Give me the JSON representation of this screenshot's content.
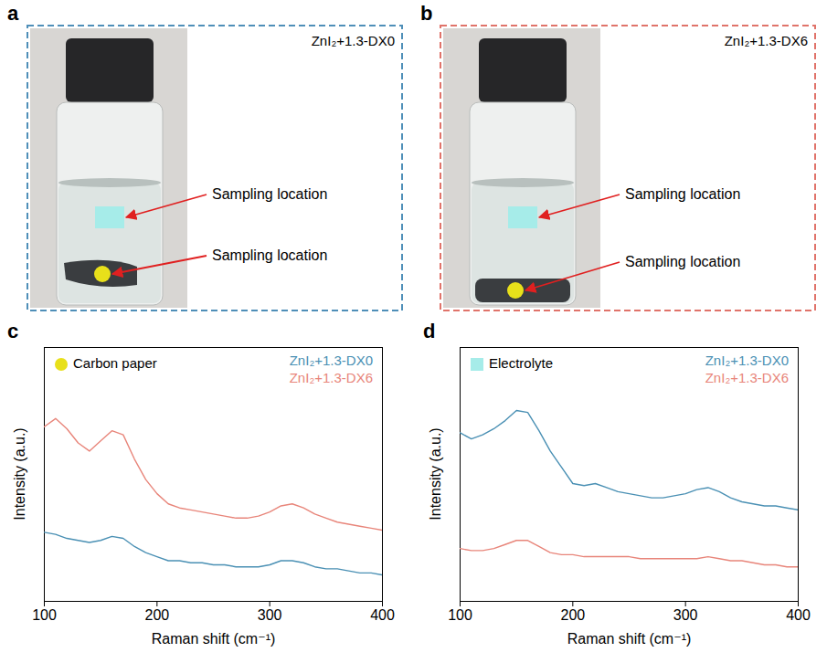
{
  "chart_data": [
    {
      "letter": "c",
      "type": "line",
      "x_label": "Raman shift (cm⁻¹)",
      "y_label": "Intensity (a.u.)",
      "x": [
        100,
        110,
        120,
        130,
        140,
        150,
        160,
        170,
        180,
        190,
        200,
        210,
        220,
        230,
        240,
        250,
        260,
        270,
        280,
        290,
        300,
        310,
        320,
        330,
        340,
        350,
        360,
        370,
        380,
        390,
        400
      ],
      "xlim": [
        100,
        400
      ],
      "xticks": [
        100,
        200,
        300,
        400
      ],
      "ylim": [
        0,
        125
      ],
      "yticks": [],
      "tick_labels": "x",
      "legend": "top-right",
      "annotation": {
        "text": "Carbon paper",
        "marker": "circle",
        "color": "#e8e01a"
      },
      "series": [
        {
          "name": "ZnI₂+1.3-DX0",
          "color": "#4a90b4",
          "values": [
            34,
            33,
            31,
            30,
            29,
            30,
            32,
            31,
            27,
            24,
            22,
            20,
            20,
            19,
            19,
            18,
            18,
            17,
            17,
            17,
            18,
            20,
            20,
            19,
            17,
            16,
            16,
            15,
            14,
            14,
            13
          ]
        },
        {
          "name": "ZnI₂+1.3-DX6",
          "color": "#e8857a",
          "values": [
            86,
            90,
            85,
            78,
            74,
            79,
            84,
            82,
            70,
            60,
            53,
            48,
            46,
            45,
            44,
            43,
            42,
            41,
            41,
            42,
            44,
            47,
            48,
            46,
            43,
            41,
            39,
            38,
            37,
            36,
            35
          ]
        }
      ]
    },
    {
      "letter": "d",
      "type": "line",
      "x_label": "Raman shift (cm⁻¹)",
      "y_label": "Intensity (a.u.)",
      "x": [
        100,
        110,
        120,
        130,
        140,
        150,
        160,
        170,
        180,
        190,
        200,
        210,
        220,
        230,
        240,
        250,
        260,
        270,
        280,
        290,
        300,
        310,
        320,
        330,
        340,
        350,
        360,
        370,
        380,
        390,
        400
      ],
      "xlim": [
        100,
        400
      ],
      "xticks": [
        100,
        200,
        300,
        400
      ],
      "ylim": [
        0,
        125
      ],
      "yticks": [],
      "tick_labels": "x",
      "legend": "top-right",
      "annotation": {
        "text": "Electrolyte",
        "marker": "square",
        "color": "#a6ece9"
      },
      "series": [
        {
          "name": "ZnI₂+1.3-DX0",
          "color": "#4a90b4",
          "values": [
            83,
            80,
            82,
            85,
            89,
            94,
            93,
            84,
            74,
            66,
            58,
            57,
            58,
            56,
            54,
            53,
            52,
            51,
            51,
            52,
            53,
            55,
            56,
            54,
            51,
            49,
            48,
            47,
            47,
            46,
            45
          ]
        },
        {
          "name": "ZnI₂+1.3-DX6",
          "color": "#e8857a",
          "values": [
            26,
            25,
            25,
            26,
            28,
            30,
            30,
            27,
            24,
            23,
            23,
            22,
            22,
            22,
            22,
            22,
            21,
            21,
            21,
            21,
            21,
            21,
            22,
            21,
            20,
            20,
            19,
            18,
            18,
            17,
            17
          ]
        }
      ]
    }
  ],
  "photo_panels": [
    {
      "letter": "a",
      "label": "ZnI₂+1.3-DX0",
      "color": "#4f8fb8",
      "annotations": [
        {
          "text": "Sampling location",
          "marker": "square",
          "color": "#a6ece9"
        },
        {
          "text": "Sampling location",
          "marker": "circle",
          "color": "#e8e01a"
        }
      ]
    },
    {
      "letter": "b",
      "label": "ZnI₂+1.3-DX6",
      "color": "#e0736a",
      "annotations": [
        {
          "text": "Sampling location",
          "marker": "square",
          "color": "#a6ece9"
        },
        {
          "text": "Sampling location",
          "marker": "circle",
          "color": "#e8e01a"
        }
      ]
    }
  ]
}
